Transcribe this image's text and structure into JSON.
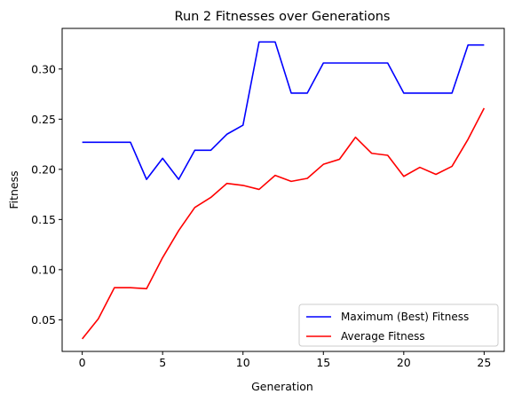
{
  "chart_data": {
    "type": "line",
    "title": "Run 2 Fitnesses over Generations",
    "xlabel": "Generation",
    "ylabel": "Fitness",
    "xlim": [
      -1.25,
      26.25
    ],
    "ylim": [
      0.0185,
      0.3405
    ],
    "x_ticks": [
      0,
      5,
      10,
      15,
      20,
      25
    ],
    "x_tick_labels": [
      "0",
      "5",
      "10",
      "15",
      "20",
      "25"
    ],
    "y_ticks": [
      0.05,
      0.1,
      0.15,
      0.2,
      0.25,
      0.3
    ],
    "y_tick_labels": [
      "0.05",
      "0.10",
      "0.15",
      "0.20",
      "0.25",
      "0.30"
    ],
    "grid": false,
    "legend_position": "lower-right",
    "x": [
      0,
      1,
      2,
      3,
      4,
      5,
      6,
      7,
      8,
      9,
      10,
      11,
      12,
      13,
      14,
      15,
      16,
      17,
      18,
      19,
      20,
      21,
      22,
      23,
      24,
      25
    ],
    "series": [
      {
        "name": "Maximum (Best) Fitness",
        "color": "#0000ff",
        "values": [
          0.227,
          0.227,
          0.227,
          0.227,
          0.19,
          0.211,
          0.19,
          0.219,
          0.219,
          0.235,
          0.244,
          0.327,
          0.327,
          0.276,
          0.276,
          0.306,
          0.306,
          0.306,
          0.306,
          0.306,
          0.276,
          0.276,
          0.276,
          0.276,
          0.324,
          0.324
        ]
      },
      {
        "name": "Average Fitness",
        "color": "#ff0000",
        "values": [
          0.031,
          0.051,
          0.082,
          0.082,
          0.081,
          0.112,
          0.139,
          0.162,
          0.172,
          0.186,
          0.184,
          0.18,
          0.194,
          0.188,
          0.191,
          0.205,
          0.21,
          0.232,
          0.216,
          0.214,
          0.193,
          0.202,
          0.195,
          0.203,
          0.23,
          0.261
        ]
      }
    ]
  }
}
